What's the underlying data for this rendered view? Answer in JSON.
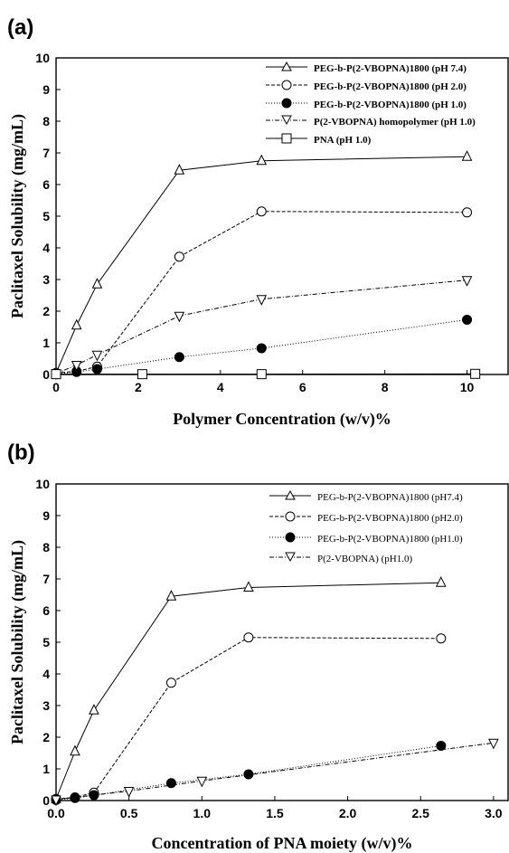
{
  "panels": [
    {
      "label": "(a)"
    },
    {
      "label": "(b)"
    }
  ],
  "chart_data": [
    {
      "type": "line",
      "xlabel": "Polymer Concentration (w/v)%",
      "ylabel": "Paclitaxel Solubility (mg/mL)",
      "xlim": [
        0,
        11
      ],
      "ylim": [
        0,
        10
      ],
      "xticks": [
        "0",
        "2",
        "4",
        "6",
        "8",
        "10"
      ],
      "yticks": [
        "0",
        "1",
        "2",
        "3",
        "4",
        "5",
        "6",
        "7",
        "8",
        "9",
        "10"
      ],
      "legend_position": "top-right",
      "series": [
        {
          "name": "PEG-b-P(2-VBOPNA)1800 (pH 7.4)",
          "marker": "triangle-open",
          "dash": "solid",
          "points": [
            [
              0,
              0.05
            ],
            [
              0.5,
              1.55
            ],
            [
              1,
              2.85
            ],
            [
              3,
              6.45
            ],
            [
              5,
              6.75
            ],
            [
              10,
              6.88
            ]
          ]
        },
        {
          "name": "PEG-b-P(2-VBOPNA)1800 (pH 2.0)",
          "marker": "circle-open",
          "dash": "dashed",
          "points": [
            [
              0,
              0.05
            ],
            [
              0.5,
              0.1
            ],
            [
              1,
              0.25
            ],
            [
              3,
              3.72
            ],
            [
              5,
              5.15
            ],
            [
              10,
              5.12
            ]
          ]
        },
        {
          "name": "PEG-b-P(2-VBOPNA)1800 (pH 1.0)",
          "marker": "circle-filled",
          "dash": "dotted",
          "points": [
            [
              0,
              0.02
            ],
            [
              0.5,
              0.08
            ],
            [
              1,
              0.17
            ],
            [
              3,
              0.55
            ],
            [
              5,
              0.83
            ],
            [
              10,
              1.73
            ]
          ]
        },
        {
          "name": "P(2-VBOPNA) homopolymer (pH 1.0)",
          "marker": "triangle-down-open",
          "dash": "dashdot",
          "points": [
            [
              0,
              0.03
            ],
            [
              0.5,
              0.3
            ],
            [
              1,
              0.62
            ],
            [
              3,
              1.85
            ],
            [
              5,
              2.38
            ],
            [
              10,
              2.98
            ]
          ]
        },
        {
          "name": "PNA (pH 1.0)",
          "marker": "square-open",
          "dash": "solid",
          "points": [
            [
              0,
              0.01
            ],
            [
              2.1,
              0.01
            ],
            [
              5,
              0.01
            ],
            [
              10.2,
              0.02
            ]
          ]
        }
      ]
    },
    {
      "type": "line",
      "xlabel": "Concentration of PNA moiety (w/v)%",
      "ylabel": "Paclitaxel Solubility (mg/mL)",
      "xlim": [
        0,
        3.1
      ],
      "ylim": [
        0,
        10
      ],
      "xticks": [
        "0.0",
        "0.5",
        "1.0",
        "1.5",
        "2.0",
        "2.5",
        "3.0"
      ],
      "yticks": [
        "0",
        "1",
        "2",
        "3",
        "4",
        "5",
        "6",
        "7",
        "8",
        "9",
        "10"
      ],
      "legend_position": "top-right",
      "series": [
        {
          "name": "PEG-b-P(2-VBOPNA)1800 (pH7.4)",
          "marker": "triangle-open",
          "dash": "solid",
          "points": [
            [
              0,
              0.05
            ],
            [
              0.13,
              1.55
            ],
            [
              0.26,
              2.85
            ],
            [
              0.79,
              6.45
            ],
            [
              1.32,
              6.73
            ],
            [
              2.64,
              6.88
            ]
          ]
        },
        {
          "name": "PEG-b-P(2-VBOPNA)1800 (pH2.0)",
          "marker": "circle-open",
          "dash": "dashed",
          "points": [
            [
              0,
              0.05
            ],
            [
              0.13,
              0.1
            ],
            [
              0.26,
              0.25
            ],
            [
              0.79,
              3.72
            ],
            [
              1.32,
              5.15
            ],
            [
              2.64,
              5.12
            ]
          ]
        },
        {
          "name": "PEG-b-P(2-VBOPNA)1800 (pH1.0)",
          "marker": "circle-filled",
          "dash": "dotted",
          "points": [
            [
              0,
              0.02
            ],
            [
              0.13,
              0.08
            ],
            [
              0.26,
              0.17
            ],
            [
              0.79,
              0.55
            ],
            [
              1.32,
              0.83
            ],
            [
              2.64,
              1.73
            ]
          ]
        },
        {
          "name": "P(2-VBOPNA) (pH1.0)",
          "marker": "triangle-down-open",
          "dash": "dashdot",
          "points": [
            [
              0,
              0.03
            ],
            [
              0.5,
              0.3
            ],
            [
              1.0,
              0.62
            ],
            [
              3.0,
              1.82
            ]
          ]
        }
      ]
    }
  ]
}
